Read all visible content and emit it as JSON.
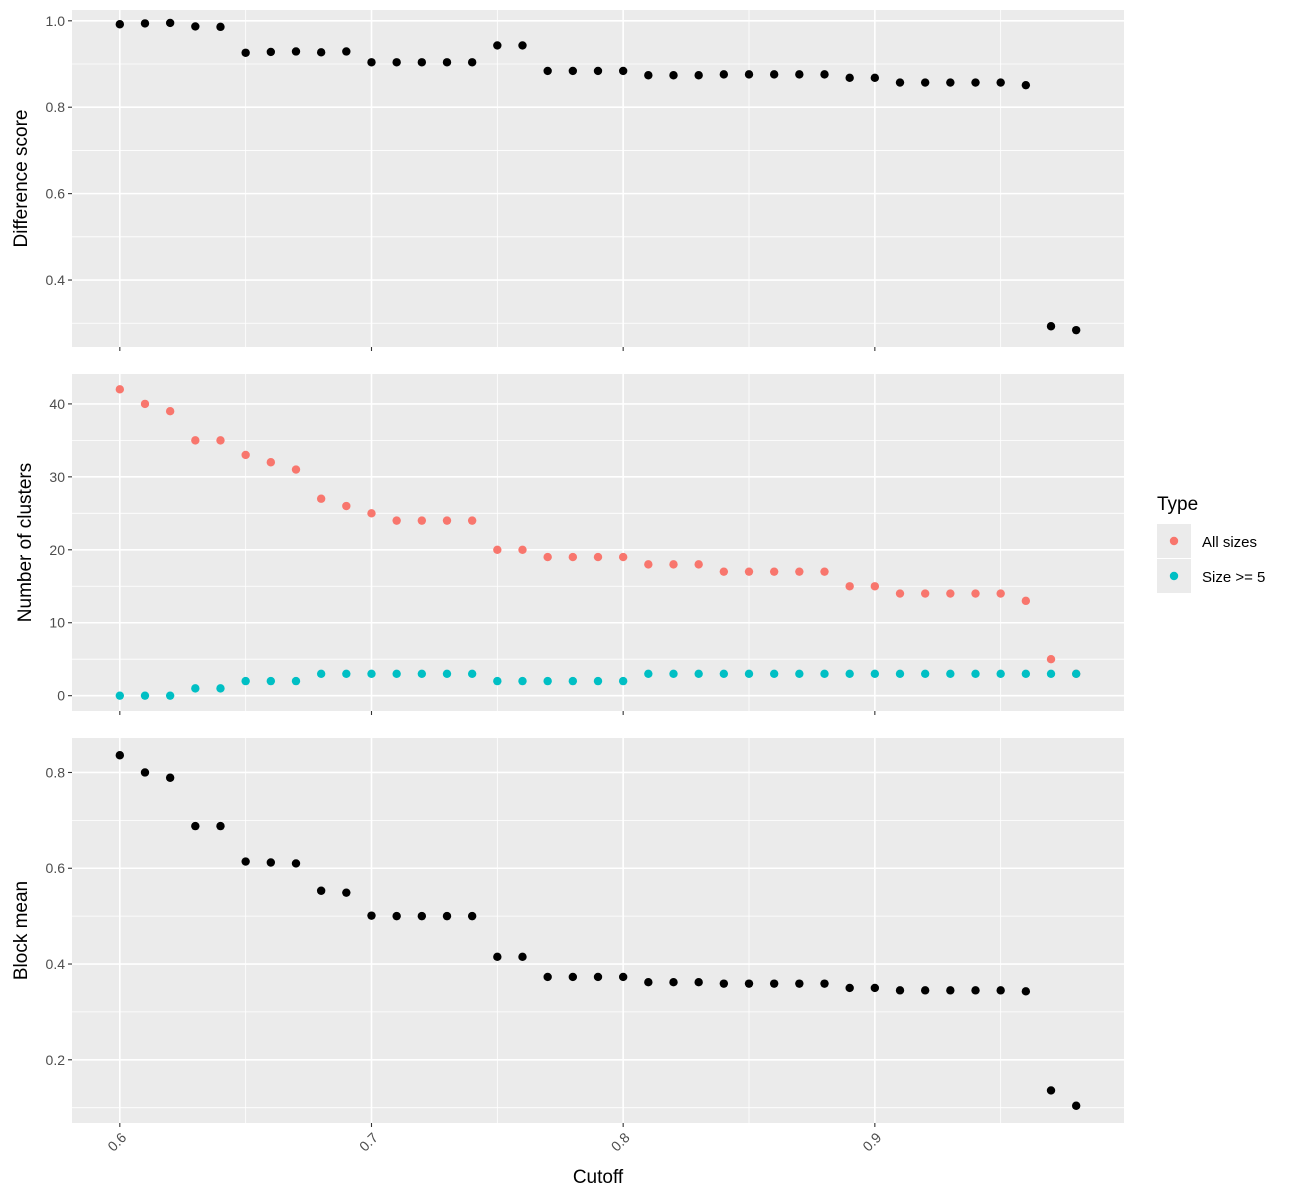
{
  "chart_data": [
    {
      "type": "scatter",
      "id": "difference",
      "ylabel": "Difference score",
      "xlabel": "",
      "ylim": [
        0.245,
        1.025
      ],
      "yticks": [
        0.4,
        0.6,
        0.8,
        1.0
      ],
      "ytick_labels": [
        "0.4",
        "0.6",
        "0.8",
        "1.0"
      ],
      "color": "#000000",
      "x": [
        0.6,
        0.61,
        0.62,
        0.63,
        0.64,
        0.65,
        0.66,
        0.67,
        0.68,
        0.69,
        0.7,
        0.71,
        0.72,
        0.73,
        0.74,
        0.75,
        0.76,
        0.77,
        0.78,
        0.79,
        0.8,
        0.81,
        0.82,
        0.83,
        0.84,
        0.85,
        0.86,
        0.87,
        0.88,
        0.89,
        0.9,
        0.91,
        0.92,
        0.93,
        0.94,
        0.95,
        0.96,
        0.97,
        0.98
      ],
      "y": [
        0.992,
        0.994,
        0.995,
        0.987,
        0.986,
        0.926,
        0.928,
        0.929,
        0.927,
        0.929,
        0.904,
        0.904,
        0.904,
        0.904,
        0.904,
        0.943,
        0.943,
        0.884,
        0.884,
        0.884,
        0.884,
        0.874,
        0.874,
        0.874,
        0.876,
        0.876,
        0.876,
        0.876,
        0.876,
        0.868,
        0.868,
        0.857,
        0.857,
        0.857,
        0.857,
        0.857,
        0.851,
        0.293,
        0.284
      ]
    },
    {
      "type": "scatter",
      "id": "clusters",
      "ylabel": "Number of clusters",
      "xlabel": "",
      "ylim": [
        -2.1,
        44.1
      ],
      "yticks": [
        0,
        10,
        20,
        30,
        40
      ],
      "ytick_labels": [
        "0",
        "10",
        "20",
        "30",
        "40"
      ],
      "x": [
        0.6,
        0.61,
        0.62,
        0.63,
        0.64,
        0.65,
        0.66,
        0.67,
        0.68,
        0.69,
        0.7,
        0.71,
        0.72,
        0.73,
        0.74,
        0.75,
        0.76,
        0.77,
        0.78,
        0.79,
        0.8,
        0.81,
        0.82,
        0.83,
        0.84,
        0.85,
        0.86,
        0.87,
        0.88,
        0.89,
        0.9,
        0.91,
        0.92,
        0.93,
        0.94,
        0.95,
        0.96,
        0.97,
        0.98
      ],
      "series": [
        {
          "name": "All sizes",
          "color": "#F8766D",
          "values": [
            42,
            40,
            39,
            35,
            35,
            33,
            32,
            31,
            27,
            26,
            25,
            24,
            24,
            24,
            24,
            20,
            20,
            19,
            19,
            19,
            19,
            18,
            18,
            18,
            17,
            17,
            17,
            17,
            17,
            15,
            15,
            14,
            14,
            14,
            14,
            14,
            13,
            5,
            3
          ]
        },
        {
          "name": "Size >= 5",
          "color": "#00BFC4",
          "values": [
            0,
            0,
            0,
            1,
            1,
            2,
            2,
            2,
            3,
            3,
            3,
            3,
            3,
            3,
            3,
            2,
            2,
            2,
            2,
            2,
            2,
            3,
            3,
            3,
            3,
            3,
            3,
            3,
            3,
            3,
            3,
            3,
            3,
            3,
            3,
            3,
            3,
            3,
            3
          ]
        }
      ]
    },
    {
      "type": "scatter",
      "id": "blockmean",
      "ylabel": "Block mean",
      "xlabel": "Cutoff",
      "ylim": [
        0.068,
        0.872
      ],
      "yticks": [
        0.2,
        0.4,
        0.6,
        0.8
      ],
      "ytick_labels": [
        "0.2",
        "0.4",
        "0.6",
        "0.8"
      ],
      "color": "#000000",
      "x": [
        0.6,
        0.61,
        0.62,
        0.63,
        0.64,
        0.65,
        0.66,
        0.67,
        0.68,
        0.69,
        0.7,
        0.71,
        0.72,
        0.73,
        0.74,
        0.75,
        0.76,
        0.77,
        0.78,
        0.79,
        0.8,
        0.81,
        0.82,
        0.83,
        0.84,
        0.85,
        0.86,
        0.87,
        0.88,
        0.89,
        0.9,
        0.91,
        0.92,
        0.93,
        0.94,
        0.95,
        0.96,
        0.97,
        0.98
      ],
      "y": [
        0.836,
        0.8,
        0.789,
        0.688,
        0.688,
        0.614,
        0.612,
        0.61,
        0.553,
        0.549,
        0.501,
        0.5,
        0.5,
        0.5,
        0.5,
        0.415,
        0.415,
        0.373,
        0.373,
        0.373,
        0.373,
        0.362,
        0.362,
        0.362,
        0.359,
        0.359,
        0.359,
        0.359,
        0.359,
        0.35,
        0.35,
        0.345,
        0.345,
        0.345,
        0.345,
        0.345,
        0.343,
        0.136,
        0.104
      ]
    }
  ],
  "x_axis": {
    "label": "Cutoff",
    "xlim": [
      0.581,
      0.999
    ],
    "ticks": [
      0.6,
      0.7,
      0.8,
      0.9
    ],
    "tick_labels": [
      "0.6",
      "0.7",
      "0.8",
      "0.9"
    ]
  },
  "legend": {
    "title": "Type",
    "position": "right",
    "items": [
      {
        "label": "All sizes",
        "color": "#F8766D"
      },
      {
        "label": "Size >= 5",
        "color": "#00BFC4"
      }
    ]
  },
  "style": {
    "panel_background": "#EBEBEB",
    "grid_color": "#FFFFFF",
    "grid": true
  }
}
